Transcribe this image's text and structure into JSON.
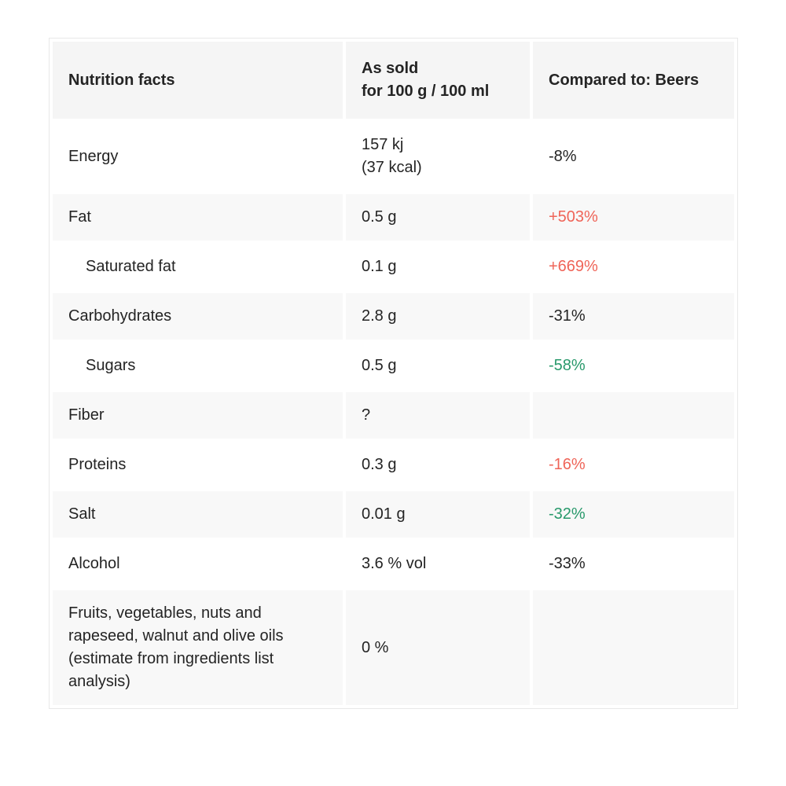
{
  "colors": {
    "comparison_increase_red": "#ef6458",
    "comparison_decrease_green": "#28996b",
    "text_dark": "#242424",
    "row_shade": "#f8f8f8",
    "header_shade": "#f5f5f5",
    "table_border": "#e8e8e8"
  },
  "table": {
    "header": [
      "Nutrition facts",
      "As sold\nfor 100 g / 100 ml",
      "Compared to: Beers"
    ],
    "rows": [
      {
        "nutrient": "Energy",
        "value": "157 kj\n(37 kcal)",
        "comparison": "-8%",
        "comparison_color": "neutral",
        "indent": false
      },
      {
        "nutrient": "Fat",
        "value": "0.5 g",
        "comparison": "+503%",
        "comparison_color": "red",
        "indent": false
      },
      {
        "nutrient": "Saturated fat",
        "value": "0.1 g",
        "comparison": "+669%",
        "comparison_color": "red",
        "indent": true
      },
      {
        "nutrient": "Carbohydrates",
        "value": "2.8 g",
        "comparison": "-31%",
        "comparison_color": "neutral",
        "indent": false
      },
      {
        "nutrient": "Sugars",
        "value": "0.5 g",
        "comparison": "-58%",
        "comparison_color": "green",
        "indent": true
      },
      {
        "nutrient": "Fiber",
        "value": "?",
        "comparison": "",
        "comparison_color": "neutral",
        "indent": false
      },
      {
        "nutrient": "Proteins",
        "value": "0.3 g",
        "comparison": "-16%",
        "comparison_color": "red",
        "indent": false
      },
      {
        "nutrient": "Salt",
        "value": "0.01 g",
        "comparison": "-32%",
        "comparison_color": "green",
        "indent": false
      },
      {
        "nutrient": "Alcohol",
        "value": "3.6 % vol",
        "comparison": "-33%",
        "comparison_color": "neutral",
        "indent": false
      },
      {
        "nutrient": "Fruits, vegetables, nuts and rapeseed, walnut and olive oils (estimate from ingredients list analysis)",
        "value": "0 %",
        "comparison": "",
        "comparison_color": "neutral",
        "indent": false
      }
    ]
  }
}
